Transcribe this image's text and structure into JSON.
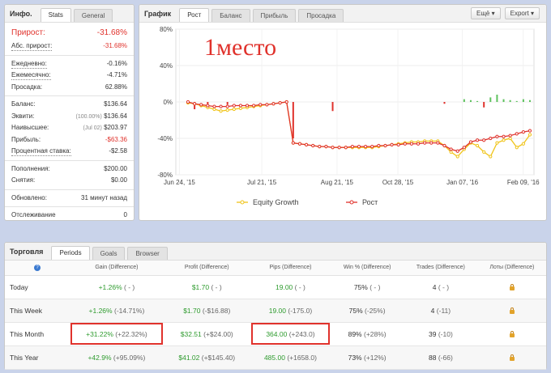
{
  "info": {
    "title": "Инфо.",
    "tabs": [
      "Stats",
      "General"
    ],
    "growth_label": "Прирост:",
    "growth_value": "-31.68%",
    "abs_label": "Абс. прирост:",
    "abs_value": "-31.68%",
    "daily_label": "Ежедневно:",
    "daily_value": "-0.16%",
    "monthly_label": "Ежемесячно:",
    "monthly_value": "-4.71%",
    "drawdown_label": "Просадка:",
    "drawdown_value": "62.88%",
    "balance_label": "Баланс:",
    "balance_value": "$136.64",
    "equity_label": "Эквити:",
    "equity_pct": "(100.00%)",
    "equity_value": "$136.64",
    "highest_label": "Наивысшее:",
    "highest_date": "(Jul 02)",
    "highest_value": "$203.97",
    "profit_label": "Прибыль:",
    "profit_value": "-$63.36",
    "interest_label": "Процентная ставка:",
    "interest_value": "-$2.58",
    "deposits_label": "Пополнения:",
    "deposits_value": "$200.00",
    "withdrawals_label": "Снятия:",
    "withdrawals_value": "$0.00",
    "updated_label": "Обновлено:",
    "updated_value": "31 минут назад",
    "tracking_label": "Отслеживание",
    "tracking_value": "0"
  },
  "chart_panel": {
    "title": "График",
    "tabs": [
      "Рост",
      "Баланс",
      "Прибыль",
      "Просадка"
    ],
    "more_label": "Ещё",
    "export_label": "Export",
    "watermark": "1место"
  },
  "chart_data": {
    "type": "line",
    "y_ticks": [
      "80%",
      "40%",
      "0%",
      "-40%",
      "-80%"
    ],
    "ylim": [
      -80,
      80
    ],
    "x_ticks": [
      "Jun 24, '15",
      "Jul 21, '15",
      "Aug 21, '15",
      "Oct 28, '15",
      "Jan 07, '16",
      "Feb 09, '16"
    ],
    "series": [
      {
        "name": "Equity Growth",
        "color": "#f0c419",
        "values": [
          -1,
          -2,
          -4,
          -6,
          -8,
          -10,
          -9,
          -8,
          -7,
          -6,
          -5,
          -4,
          -3,
          -2,
          -1,
          0,
          -45,
          -46,
          -47,
          -48,
          -49,
          -49,
          -50,
          -50,
          -50,
          -50,
          -50,
          -50,
          -50,
          -49,
          -48,
          -47,
          -46,
          -45,
          -44,
          -44,
          -43,
          -43,
          -43,
          -48,
          -55,
          -60,
          -52,
          -45,
          -48,
          -55,
          -60,
          -45,
          -42,
          -40,
          -50,
          -46,
          -36
        ]
      },
      {
        "name": "Рост",
        "color": "#e0322c",
        "values": [
          0,
          -2,
          -3,
          -4,
          -5,
          -5,
          -5,
          -4,
          -4,
          -4,
          -4,
          -3,
          -3,
          -2,
          -1,
          0,
          -45,
          -46,
          -47,
          -48,
          -49,
          -49,
          -50,
          -50,
          -50,
          -49,
          -49,
          -49,
          -49,
          -48,
          -48,
          -47,
          -47,
          -46,
          -46,
          -46,
          -45,
          -45,
          -45,
          -48,
          -52,
          -54,
          -50,
          -44,
          -42,
          -42,
          -40,
          -38,
          -38,
          -37,
          -35,
          -33,
          -31.68
        ]
      }
    ],
    "bars": [
      0,
      -8,
      0,
      -4,
      0,
      0,
      -3,
      0,
      0,
      0,
      0,
      0,
      0,
      0,
      0,
      0,
      -40,
      0,
      0,
      0,
      0,
      0,
      -10,
      0,
      0,
      0,
      0,
      0,
      0,
      0,
      0,
      0,
      0,
      0,
      0,
      0,
      0,
      0,
      0,
      -2,
      0,
      0,
      3,
      2,
      1,
      -6,
      5,
      8,
      3,
      2,
      1,
      3,
      2
    ],
    "legend_position": "bottom"
  },
  "trading": {
    "title": "Торговля",
    "tabs": [
      "Periods",
      "Goals",
      "Browser"
    ],
    "headers": [
      "Gain (Difference)",
      "Profit (Difference)",
      "Pips (Difference)",
      "Win % (Difference)",
      "Trades (Difference)",
      "Лоты (Difference)"
    ],
    "rows": [
      {
        "period": "Today",
        "gain": "+1.26%",
        "gain_diff": "( - )",
        "profit": "$1.70",
        "profit_diff": "( - )",
        "pips": "19.00",
        "pips_diff": "( - )",
        "win": "75%",
        "win_diff": "( - )",
        "trades": "4",
        "trades_diff": "( - )"
      },
      {
        "period": "This Week",
        "gain": "+1.26%",
        "gain_diff": "(-14.71%)",
        "profit": "$1.70",
        "profit_diff": "(-$16.88)",
        "pips": "19.00",
        "pips_diff": "(-175.0)",
        "win": "75%",
        "win_diff": "(-25%)",
        "trades": "4",
        "trades_diff": "(-11)"
      },
      {
        "period": "This Month",
        "gain": "+31.22%",
        "gain_diff": "(+22.32%)",
        "profit": "$32.51",
        "profit_diff": "(+$24.00)",
        "pips": "364.00",
        "pips_diff": "(+243.0)",
        "win": "89%",
        "win_diff": "(+28%)",
        "trades": "39",
        "trades_diff": "(-10)"
      },
      {
        "period": "This Year",
        "gain": "+42.9%",
        "gain_diff": "(+95.09%)",
        "profit": "$41.02",
        "profit_diff": "(+$145.40)",
        "pips": "485.00",
        "pips_diff": "(+1658.0)",
        "win": "73%",
        "win_diff": "(+12%)",
        "trades": "88",
        "trades_diff": "(-66)"
      }
    ]
  },
  "colors": {
    "red": "#e0322c",
    "green": "#2e9b2e",
    "yellow": "#f0c419",
    "accent": "#3a79d0"
  }
}
